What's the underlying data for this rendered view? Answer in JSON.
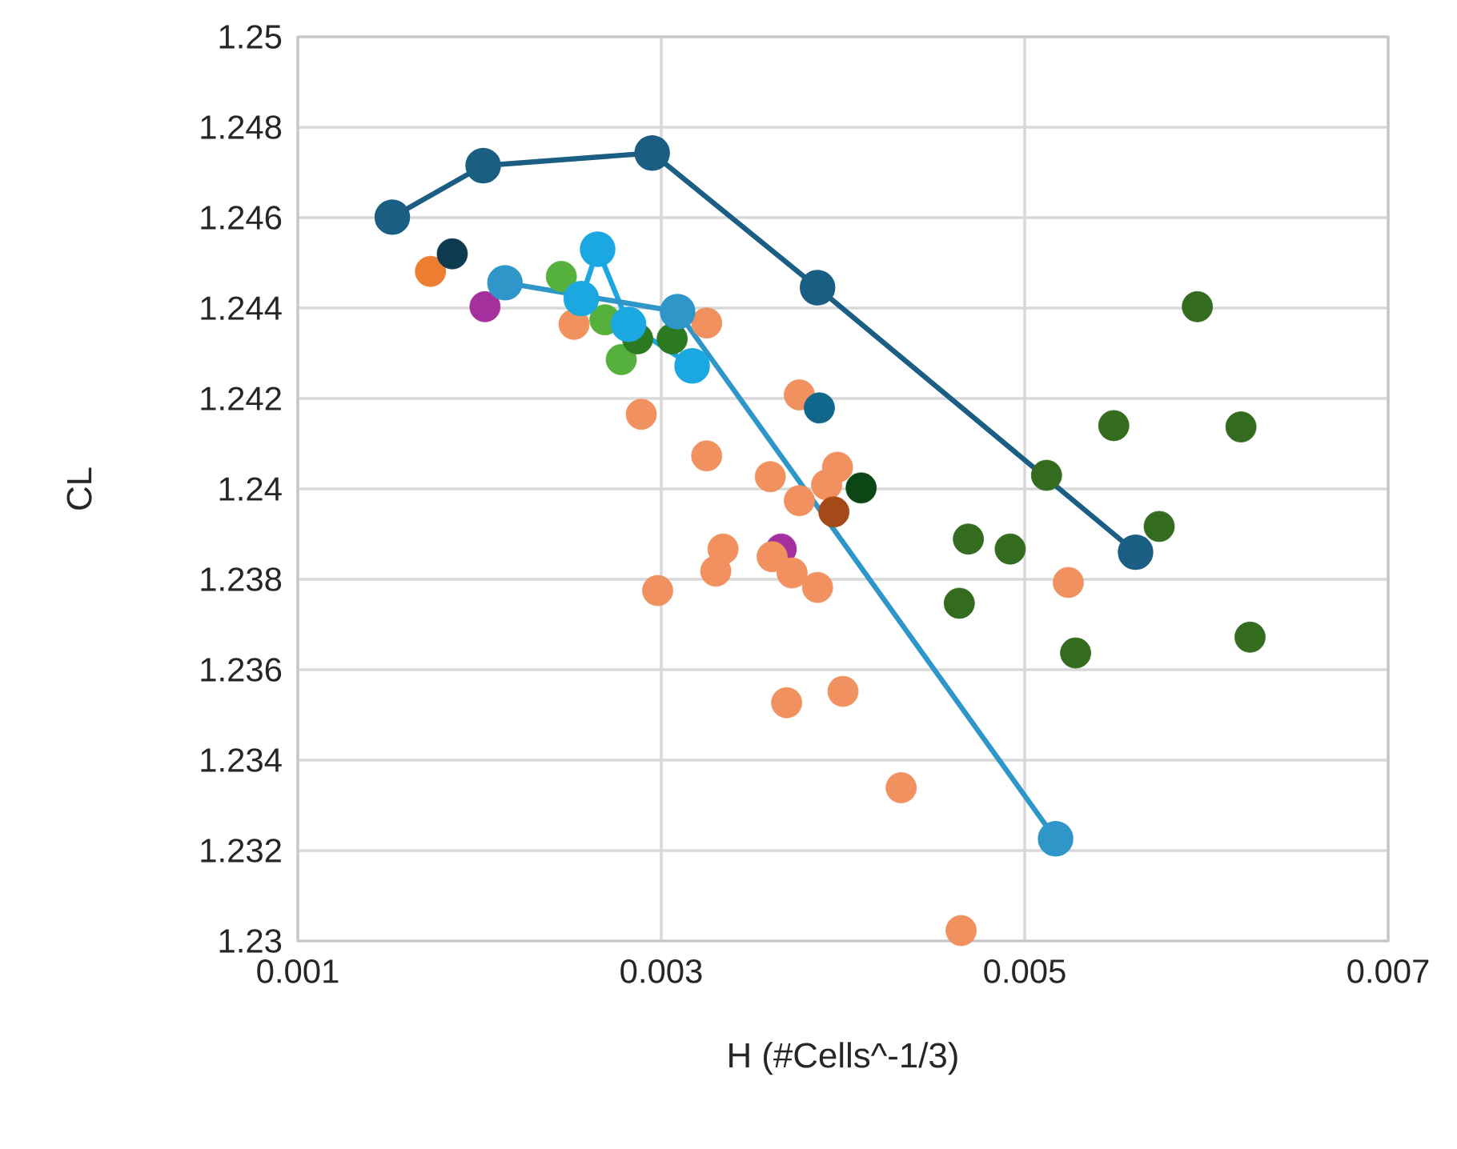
{
  "chart_data": {
    "type": "scatter",
    "xlabel": "H (#Cells^-1/3)",
    "ylabel": "CL",
    "xlim": [
      0.001,
      0.007
    ],
    "xticks": [
      0.001,
      0.003,
      0.005,
      0.007
    ],
    "ylim": [
      1.23,
      1.25
    ],
    "yticks": [
      1.23,
      1.232,
      1.234,
      1.236,
      1.238,
      1.24,
      1.242,
      1.244,
      1.246,
      1.248,
      1.25
    ],
    "grid": true,
    "marker": "circle",
    "line_style": "solid",
    "series": [
      {
        "color": "#a3309c",
        "x": [
          0.00203,
          0.00366
        ],
        "values": [
          1.24403,
          1.23867
        ]
      },
      {
        "color": "#f0915f",
        "x": [
          0.00252,
          0.00325,
          0.00376,
          0.00289,
          0.00325,
          0.0036,
          0.00376,
          0.00397,
          0.00391,
          0.00334,
          0.0033,
          0.00361,
          0.00372,
          0.00386,
          0.00298,
          0.00369,
          0.004,
          0.00524,
          0.00465,
          0.00432
        ],
        "values": [
          1.24364,
          1.24367,
          1.24208,
          1.24165,
          1.24073,
          1.24027,
          1.23974,
          1.24048,
          1.24009,
          1.23867,
          1.23818,
          1.2385,
          1.23814,
          1.23782,
          1.23775,
          1.23527,
          1.23552,
          1.23793,
          1.23023,
          1.23339
        ]
      },
      {
        "color": "#336b1f",
        "x": [
          0.00595,
          0.00549,
          0.00619,
          0.00512,
          0.00574,
          0.00469,
          0.00492,
          0.00464,
          0.00528,
          0.00624
        ],
        "values": [
          1.24403,
          1.2414,
          1.24137,
          1.2403,
          1.23917,
          1.23889,
          1.23867,
          1.23747,
          1.23637,
          1.23672
        ]
      },
      {
        "color": "#ed7d31",
        "x": [
          0.00173
        ],
        "values": [
          1.24481
        ]
      },
      {
        "color": "#0e3a50",
        "x": [
          0.00185
        ],
        "values": [
          1.2452
        ]
      },
      {
        "color": "#10678c",
        "x": [
          0.00387
        ],
        "values": [
          1.24179
        ]
      },
      {
        "color": "#a44a18",
        "x": [
          0.00395
        ],
        "values": [
          1.23949
        ]
      },
      {
        "color": "#0b4614",
        "x": [
          0.0041
        ],
        "values": [
          1.24002
        ]
      },
      {
        "color": "#56b03c",
        "x": [
          0.00245,
          0.00269,
          0.00278
        ],
        "values": [
          1.2447,
          1.24374,
          1.24286
        ]
      },
      {
        "color": "#2b7a22",
        "x": [
          0.00287,
          0.00306
        ],
        "values": [
          1.24332,
          1.24332
        ]
      },
      {
        "type": "line",
        "color": "#1ba8e0",
        "x": [
          0.00256,
          0.00265,
          0.00282,
          0.00317
        ],
        "values": [
          1.24421,
          1.2453,
          1.24364,
          1.24272
        ]
      },
      {
        "type": "line",
        "color": "#2e96c8",
        "x": [
          0.00214,
          0.00309,
          0.00517
        ],
        "values": [
          1.24456,
          1.24392,
          1.23226
        ]
      },
      {
        "type": "line",
        "color": "#1b5e83",
        "x": [
          0.00152,
          0.00202,
          0.00295,
          0.00386,
          0.00561
        ],
        "values": [
          1.24601,
          1.24715,
          1.24743,
          1.24445,
          1.2386
        ]
      }
    ]
  }
}
